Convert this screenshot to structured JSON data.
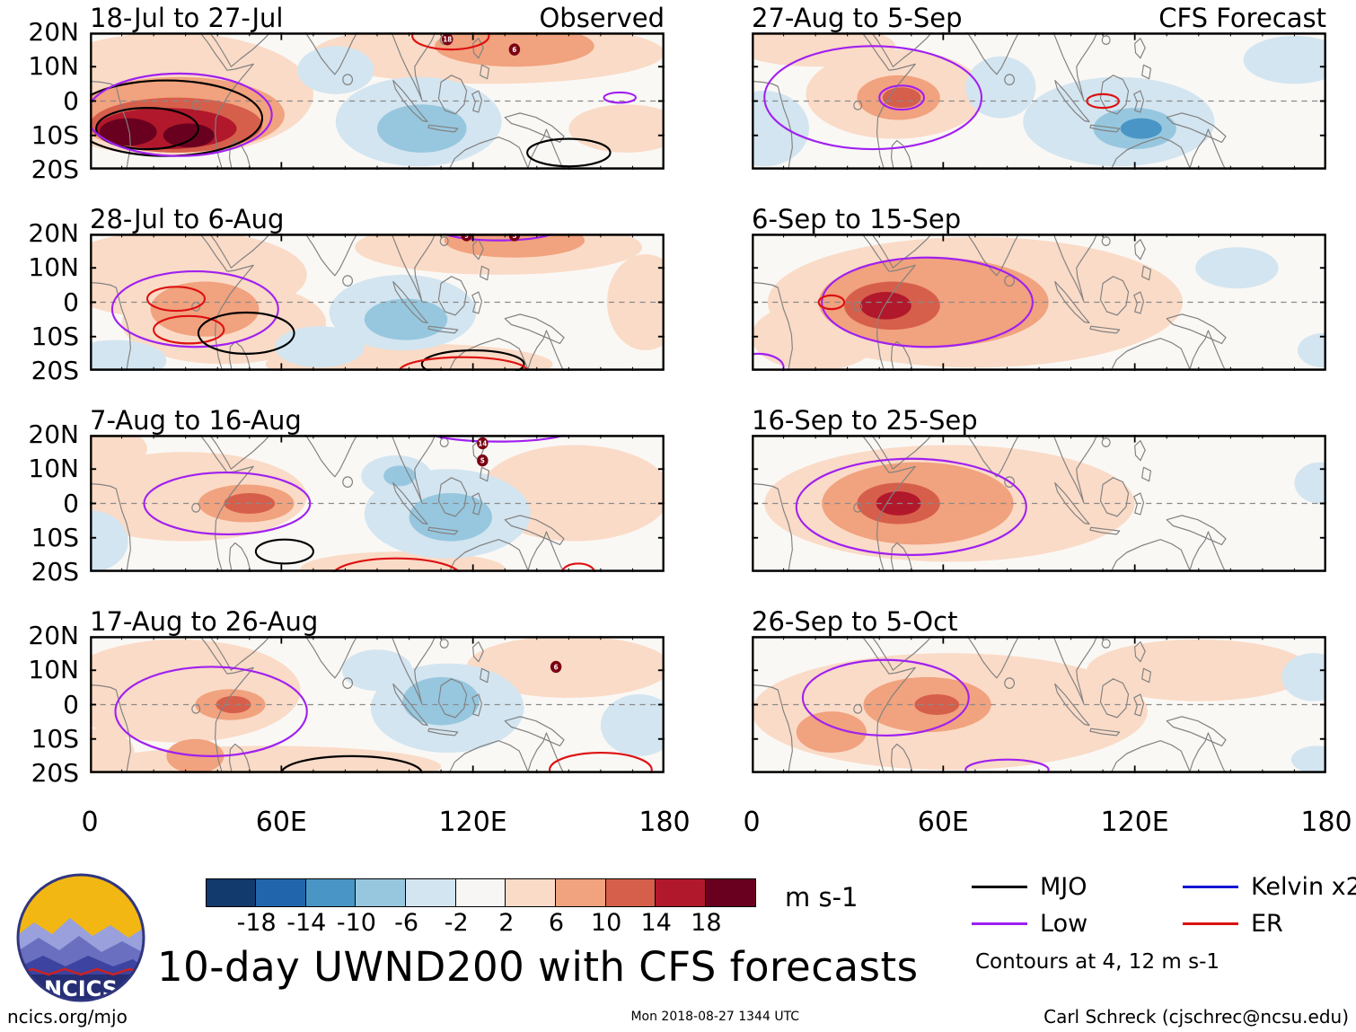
{
  "chart_data": {
    "type": "heatmap",
    "title": "10-day UWND200 with CFS forecasts",
    "variable": "200-hPa zonal wind anomaly (UWND200)",
    "units": "m s-1",
    "x_range_deg_east": [
      0,
      180
    ],
    "y_range_deg_lat": [
      -20,
      20
    ],
    "grid": false,
    "axes": {
      "x_tick_labels": [
        "0",
        "60E",
        "120E",
        "180"
      ],
      "x_tick_lons": [
        0,
        60,
        120,
        180
      ],
      "y_tick_labels": [
        "20N",
        "10N",
        "0",
        "10S",
        "20S"
      ],
      "y_tick_lats": [
        20,
        10,
        0,
        -10,
        -20
      ]
    },
    "colorbar": {
      "tick_labels": [
        "-18",
        "-14",
        "-10",
        "-6",
        "-2",
        "2",
        "6",
        "10",
        "14",
        "18"
      ],
      "units": "m s-1",
      "segments": [
        {
          "key": "b5",
          "color": "#123a6d"
        },
        {
          "key": "b4",
          "color": "#2166ac"
        },
        {
          "key": "b3",
          "color": "#4995c6"
        },
        {
          "key": "b2",
          "color": "#97c7df"
        },
        {
          "key": "b1",
          "color": "#d3e5f0"
        },
        {
          "key": "n0",
          "color": "#f7f6f4"
        },
        {
          "key": "r1",
          "color": "#fadbc7"
        },
        {
          "key": "r2",
          "color": "#f1a27e"
        },
        {
          "key": "r3",
          "color": "#d65f4c"
        },
        {
          "key": "r4",
          "color": "#b2182b"
        },
        {
          "key": "r5",
          "color": "#69001f"
        }
      ]
    },
    "contour_colors": {
      "mjo": "#000000",
      "low": "#a020f0",
      "kelvin": "#1515d6",
      "er": "#dd1111"
    },
    "contour_note": "Contours at 4, 12 m s-1",
    "legend": {
      "items": [
        {
          "label": "MJO",
          "key": "mjo"
        },
        {
          "label": "Low",
          "key": "low"
        },
        {
          "label": "Kelvin x2",
          "key": "kelvin"
        },
        {
          "label": "ER",
          "key": "er"
        }
      ],
      "note": "Contours at 4, 12 m s-1"
    },
    "columns": [
      {
        "label": "Observed"
      },
      {
        "label": "CFS Forecast"
      }
    ],
    "panels": [
      {
        "id": "L1",
        "title": "18-Jul to 27-Jul",
        "corner": "Observed",
        "shading": [
          {
            "c": "r1",
            "lon": 25,
            "lat": 2,
            "rlon": 45,
            "rlat": 18
          },
          {
            "c": "r1",
            "lon": 125,
            "lat": 14,
            "rlon": 55,
            "rlat": 9
          },
          {
            "c": "r1",
            "lon": 168,
            "lat": -8,
            "rlon": 18,
            "rlat": 7
          },
          {
            "c": "r2",
            "lon": 28,
            "lat": -4,
            "rlon": 33,
            "rlat": 11
          },
          {
            "c": "r2",
            "lon": 133,
            "lat": 16,
            "rlon": 25,
            "rlat": 6
          },
          {
            "c": "r3",
            "lon": 27,
            "lat": -7,
            "rlon": 27,
            "rlat": 8
          },
          {
            "c": "r4",
            "lon": 24,
            "lat": -8,
            "rlon": 22,
            "rlat": 6
          },
          {
            "c": "r5",
            "lon": 12,
            "lat": -9,
            "rlon": 9,
            "rlat": 4
          },
          {
            "c": "r5",
            "lon": 31,
            "lat": -10,
            "rlon": 8,
            "rlat": 3.5
          },
          {
            "c": "b1",
            "lon": 103,
            "lat": -6,
            "rlon": 26,
            "rlat": 13
          },
          {
            "c": "b1",
            "lon": 77,
            "lat": 9,
            "rlon": 12,
            "rlat": 7
          },
          {
            "c": "b2",
            "lon": 104,
            "lat": -8,
            "rlon": 14,
            "rlat": 7
          }
        ],
        "contours": [
          {
            "w": "mjo",
            "lon": 24,
            "lat": -5,
            "rlon": 30,
            "rlat": 11
          },
          {
            "w": "mjo",
            "lon": 18,
            "lat": -8,
            "rlon": 16,
            "rlat": 6
          },
          {
            "w": "low",
            "lon": 28,
            "lat": -4,
            "rlon": 29,
            "rlat": 12
          },
          {
            "w": "mjo",
            "lon": 150,
            "lat": -15,
            "rlon": 13,
            "rlat": 4
          },
          {
            "w": "er",
            "lon": 113,
            "lat": 19,
            "rlon": 12,
            "rlat": 4
          },
          {
            "w": "low",
            "lon": 166,
            "lat": 1,
            "rlon": 5,
            "rlat": 1.5
          }
        ],
        "storms": [
          {
            "lon": 112,
            "lat": 18,
            "label": "18"
          },
          {
            "lon": 133,
            "lat": 15,
            "label": "6"
          }
        ]
      },
      {
        "id": "L2",
        "title": "28-Jul to 6-Aug",
        "corner": "",
        "shading": [
          {
            "c": "r1",
            "lon": 28,
            "lat": 8,
            "rlon": 40,
            "rlat": 13
          },
          {
            "c": "r1",
            "lon": 42,
            "lat": -6,
            "rlon": 32,
            "rlat": 12
          },
          {
            "c": "r1",
            "lon": 128,
            "lat": 16,
            "rlon": 45,
            "rlat": 8
          },
          {
            "c": "r1",
            "lon": 100,
            "lat": -18,
            "rlon": 45,
            "rlat": 6
          },
          {
            "c": "r1",
            "lon": 174,
            "lat": 0,
            "rlon": 12,
            "rlat": 14
          },
          {
            "c": "r2",
            "lon": 36,
            "lat": -2,
            "rlon": 17,
            "rlat": 8
          },
          {
            "c": "r2",
            "lon": 133,
            "lat": 18,
            "rlon": 22,
            "rlat": 5
          },
          {
            "c": "b1",
            "lon": 98,
            "lat": -3,
            "rlon": 23,
            "rlat": 11
          },
          {
            "c": "b1",
            "lon": 72,
            "lat": -13,
            "rlon": 14,
            "rlat": 6
          },
          {
            "c": "b1",
            "lon": 8,
            "lat": -17,
            "rlon": 16,
            "rlat": 6
          },
          {
            "c": "b2",
            "lon": 99,
            "lat": -5,
            "rlon": 13,
            "rlat": 6
          }
        ],
        "contours": [
          {
            "w": "low",
            "lon": 33,
            "lat": -2,
            "rlon": 26,
            "rlat": 11
          },
          {
            "w": "er",
            "lon": 27,
            "lat": 1,
            "rlon": 9,
            "rlat": 3.5
          },
          {
            "w": "er",
            "lon": 31,
            "lat": -8,
            "rlon": 11,
            "rlat": 4
          },
          {
            "w": "mjo",
            "lon": 49,
            "lat": -9,
            "rlon": 15,
            "rlat": 6
          },
          {
            "w": "mjo",
            "lon": 120,
            "lat": -18,
            "rlon": 16,
            "rlat": 4
          },
          {
            "w": "er",
            "lon": 117,
            "lat": -20,
            "rlon": 20,
            "rlat": 4
          },
          {
            "w": "low",
            "lon": 128,
            "lat": 21,
            "rlon": 18,
            "rlat": 3
          }
        ],
        "storms": [
          {
            "lon": 118,
            "lat": 19.5,
            "label": "9"
          },
          {
            "lon": 133,
            "lat": 19.5,
            "label": "S"
          }
        ]
      },
      {
        "id": "L3",
        "title": "7-Aug to 16-Aug",
        "corner": "",
        "shading": [
          {
            "c": "r1",
            "lon": 30,
            "lat": 2,
            "rlon": 38,
            "rlat": 13
          },
          {
            "c": "r1",
            "lon": 152,
            "lat": 3,
            "rlon": 30,
            "rlat": 14
          },
          {
            "c": "r1",
            "lon": 98,
            "lat": -19,
            "rlon": 32,
            "rlat": 5
          },
          {
            "c": "r1",
            "lon": 4,
            "lat": 16,
            "rlon": 14,
            "rlat": 6
          },
          {
            "c": "r2",
            "lon": 49,
            "lat": 0,
            "rlon": 15,
            "rlat": 5.5
          },
          {
            "c": "r3",
            "lon": 50,
            "lat": 0,
            "rlon": 8,
            "rlat": 3
          },
          {
            "c": "b1",
            "lon": 112,
            "lat": -3,
            "rlon": 26,
            "rlat": 13
          },
          {
            "c": "b1",
            "lon": 96,
            "lat": 8,
            "rlon": 11,
            "rlat": 6
          },
          {
            "c": "b1",
            "lon": 0,
            "lat": -11,
            "rlon": 12,
            "rlat": 9
          },
          {
            "c": "b2",
            "lon": 113,
            "lat": -4,
            "rlon": 13,
            "rlat": 7
          },
          {
            "c": "b2",
            "lon": 97,
            "lat": 8,
            "rlon": 5,
            "rlat": 3
          }
        ],
        "contours": [
          {
            "w": "low",
            "lon": 43,
            "lat": 0,
            "rlon": 26,
            "rlat": 9
          },
          {
            "w": "mjo",
            "lon": 61,
            "lat": -14,
            "rlon": 9,
            "rlat": 3.5
          },
          {
            "w": "er",
            "lon": 96,
            "lat": -21,
            "rlon": 20,
            "rlat": 5
          },
          {
            "w": "er",
            "lon": 153,
            "lat": -20,
            "rlon": 5,
            "rlat": 2.5
          },
          {
            "w": "low",
            "lon": 128,
            "lat": 21,
            "rlon": 22,
            "rlat": 3
          }
        ],
        "storms": [
          {
            "lon": 123,
            "lat": 17.5,
            "label": "14"
          },
          {
            "lon": 123,
            "lat": 12.5,
            "label": "S"
          }
        ]
      },
      {
        "id": "L4",
        "title": "17-Aug to 26-Aug",
        "corner": "",
        "shading": [
          {
            "c": "r1",
            "lon": 28,
            "lat": 4,
            "rlon": 38,
            "rlat": 15
          },
          {
            "c": "r1",
            "lon": 150,
            "lat": 11,
            "rlon": 32,
            "rlat": 9
          },
          {
            "c": "r1",
            "lon": 55,
            "lat": -18,
            "rlon": 55,
            "rlat": 6
          },
          {
            "c": "r1",
            "lon": 2,
            "lat": -14,
            "rlon": 12,
            "rlat": 7
          },
          {
            "c": "r2",
            "lon": 44,
            "lat": 0,
            "rlon": 11,
            "rlat": 4.5
          },
          {
            "c": "r2",
            "lon": 33,
            "lat": -15,
            "rlon": 9,
            "rlat": 5
          },
          {
            "c": "r3",
            "lon": 45,
            "lat": 0,
            "rlon": 5.5,
            "rlat": 2.5
          },
          {
            "c": "b1",
            "lon": 112,
            "lat": -1,
            "rlon": 24,
            "rlat": 13
          },
          {
            "c": "b1",
            "lon": 90,
            "lat": 10,
            "rlon": 11,
            "rlat": 6
          },
          {
            "c": "b1",
            "lon": 172,
            "lat": -6,
            "rlon": 12,
            "rlat": 9
          },
          {
            "c": "b2",
            "lon": 110,
            "lat": 1,
            "rlon": 12,
            "rlat": 7
          }
        ],
        "contours": [
          {
            "w": "low",
            "lon": 38,
            "lat": -2,
            "rlon": 30,
            "rlat": 13
          },
          {
            "w": "mjo",
            "lon": 82,
            "lat": -20,
            "rlon": 22,
            "rlat": 5
          },
          {
            "w": "er",
            "lon": 160,
            "lat": -19,
            "rlon": 16,
            "rlat": 5
          }
        ],
        "storms": [
          {
            "lon": 146,
            "lat": 11,
            "label": "6"
          }
        ]
      },
      {
        "id": "R1",
        "title": "27-Aug to 5-Sep",
        "corner": "CFS Forecast",
        "shading": [
          {
            "c": "r1",
            "lon": 45,
            "lat": 2,
            "rlon": 28,
            "rlat": 13
          },
          {
            "c": "r1",
            "lon": 20,
            "lat": 16,
            "rlon": 25,
            "rlat": 6
          },
          {
            "c": "r2",
            "lon": 46,
            "lat": 1,
            "rlon": 13,
            "rlat": 6.5
          },
          {
            "c": "r3",
            "lon": 47,
            "lat": 1,
            "rlon": 6,
            "rlat": 3
          },
          {
            "c": "b1",
            "lon": 4,
            "lat": -8,
            "rlon": 14,
            "rlat": 11
          },
          {
            "c": "b1",
            "lon": 115,
            "lat": -6,
            "rlon": 30,
            "rlat": 13
          },
          {
            "c": "b1",
            "lon": 78,
            "lat": 4,
            "rlon": 11,
            "rlat": 9
          },
          {
            "c": "b1",
            "lon": 170,
            "lat": 12,
            "rlon": 16,
            "rlat": 7
          },
          {
            "c": "b2",
            "lon": 120,
            "lat": -8,
            "rlon": 13,
            "rlat": 6
          },
          {
            "c": "b3",
            "lon": 122,
            "lat": -8,
            "rlon": 6.5,
            "rlat": 3
          }
        ],
        "contours": [
          {
            "w": "low",
            "lon": 38,
            "lat": 1,
            "rlon": 34,
            "rlat": 15
          },
          {
            "w": "low",
            "lon": 47,
            "lat": 1,
            "rlon": 7,
            "rlat": 3.5
          },
          {
            "w": "er",
            "lon": 110,
            "lat": 0,
            "rlon": 5,
            "rlat": 2
          }
        ],
        "storms": []
      },
      {
        "id": "R2",
        "title": "6-Sep to 15-Sep",
        "corner": "",
        "shading": [
          {
            "c": "r1",
            "lon": 70,
            "lat": 0,
            "rlon": 65,
            "rlat": 19
          },
          {
            "c": "r1",
            "lon": 20,
            "lat": -10,
            "rlon": 20,
            "rlat": 10
          },
          {
            "c": "r2",
            "lon": 57,
            "lat": 0,
            "rlon": 36,
            "rlat": 13
          },
          {
            "c": "r3",
            "lon": 44,
            "lat": -1,
            "rlon": 15,
            "rlat": 7
          },
          {
            "c": "r4",
            "lon": 42,
            "lat": -1,
            "rlon": 8,
            "rlat": 4
          },
          {
            "c": "b1",
            "lon": 152,
            "lat": 10,
            "rlon": 13,
            "rlat": 6
          },
          {
            "c": "b1",
            "lon": 179,
            "lat": -14,
            "rlon": 8,
            "rlat": 5
          }
        ],
        "contours": [
          {
            "w": "low",
            "lon": 55,
            "lat": 0,
            "rlon": 33,
            "rlat": 13
          },
          {
            "w": "er",
            "lon": 25,
            "lat": 0,
            "rlon": 4,
            "rlat": 2
          },
          {
            "w": "low",
            "lon": 2,
            "lat": -19,
            "rlon": 8,
            "rlat": 4
          }
        ],
        "storms": []
      },
      {
        "id": "R3",
        "title": "16-Sep to 25-Sep",
        "corner": "",
        "shading": [
          {
            "c": "r1",
            "lon": 62,
            "lat": 0,
            "rlon": 58,
            "rlat": 17
          },
          {
            "c": "r2",
            "lon": 52,
            "lat": 0,
            "rlon": 30,
            "rlat": 12
          },
          {
            "c": "r3",
            "lon": 46,
            "lat": 0,
            "rlon": 13,
            "rlat": 6
          },
          {
            "c": "r4",
            "lon": 46,
            "lat": 0,
            "rlon": 7,
            "rlat": 3.5
          },
          {
            "c": "b1",
            "lon": 178,
            "lat": 6,
            "rlon": 8,
            "rlat": 6
          }
        ],
        "contours": [
          {
            "w": "low",
            "lon": 50,
            "lat": -1,
            "rlon": 36,
            "rlat": 14
          }
        ],
        "storms": []
      },
      {
        "id": "R4",
        "title": "26-Sep to 5-Oct",
        "corner": "",
        "shading": [
          {
            "c": "r1",
            "lon": 62,
            "lat": -2,
            "rlon": 62,
            "rlat": 17
          },
          {
            "c": "r1",
            "lon": 140,
            "lat": 10,
            "rlon": 35,
            "rlat": 9
          },
          {
            "c": "r2",
            "lon": 55,
            "lat": 0,
            "rlon": 20,
            "rlat": 8
          },
          {
            "c": "r2",
            "lon": 25,
            "lat": -8,
            "rlon": 11,
            "rlat": 6
          },
          {
            "c": "r3",
            "lon": 58,
            "lat": 0,
            "rlon": 7,
            "rlat": 3
          },
          {
            "c": "b1",
            "lon": 176,
            "lat": 8,
            "rlon": 10,
            "rlat": 7
          },
          {
            "c": "b1",
            "lon": 177,
            "lat": -16,
            "rlon": 8,
            "rlat": 4
          }
        ],
        "contours": [
          {
            "w": "low",
            "lon": 42,
            "lat": 2,
            "rlon": 26,
            "rlat": 11
          },
          {
            "w": "low",
            "lon": 80,
            "lat": -19,
            "rlon": 13,
            "rlat": 3
          }
        ],
        "storms": []
      }
    ]
  },
  "branding": {
    "logo_text": "NCICS"
  },
  "footer": {
    "left": "ncics.org/mjo",
    "center": "Mon 2018-08-27 1344 UTC",
    "right": "Carl Schreck (cjschrec@ncsu.edu)"
  }
}
